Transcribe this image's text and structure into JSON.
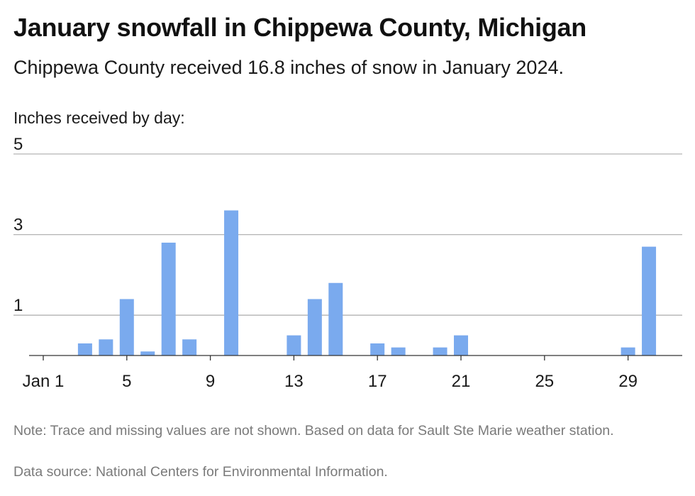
{
  "title": "January snowfall in Chippewa County, Michigan",
  "subtitle": "Chippewa County received 16.8 inches of snow in January 2024.",
  "ylabel": "Inches received by day:",
  "note": "Note: Trace and missing values are not shown. Based on data for Sault Ste Marie weather station.",
  "source": "Data source: National Centers for Environmental Information.",
  "colors": {
    "bar": "#7aaaee",
    "grid": "#b3b3b3",
    "axis": "#333333"
  },
  "chart_data": {
    "type": "bar",
    "x": [
      1,
      2,
      3,
      4,
      5,
      6,
      7,
      8,
      9,
      10,
      11,
      12,
      13,
      14,
      15,
      16,
      17,
      18,
      19,
      20,
      21,
      22,
      23,
      24,
      25,
      26,
      27,
      28,
      29,
      30
    ],
    "values": [
      0,
      0,
      0.3,
      0.4,
      1.4,
      0.1,
      2.8,
      0.4,
      0,
      3.6,
      0,
      0,
      0.5,
      1.4,
      1.8,
      0,
      0.3,
      0.2,
      0,
      0.2,
      0.5,
      0,
      0,
      0,
      0,
      0,
      0,
      0,
      0.2,
      2.7
    ],
    "xticks": [
      {
        "value": 1,
        "label": "Jan 1"
      },
      {
        "value": 5,
        "label": "5"
      },
      {
        "value": 9,
        "label": "9"
      },
      {
        "value": 13,
        "label": "13"
      },
      {
        "value": 17,
        "label": "17"
      },
      {
        "value": 21,
        "label": "21"
      },
      {
        "value": 25,
        "label": "25"
      },
      {
        "value": 29,
        "label": "29"
      }
    ],
    "yticks": [
      1,
      3,
      5
    ],
    "ylim": [
      0,
      5
    ],
    "xlim": [
      1,
      30
    ],
    "grid": true
  }
}
